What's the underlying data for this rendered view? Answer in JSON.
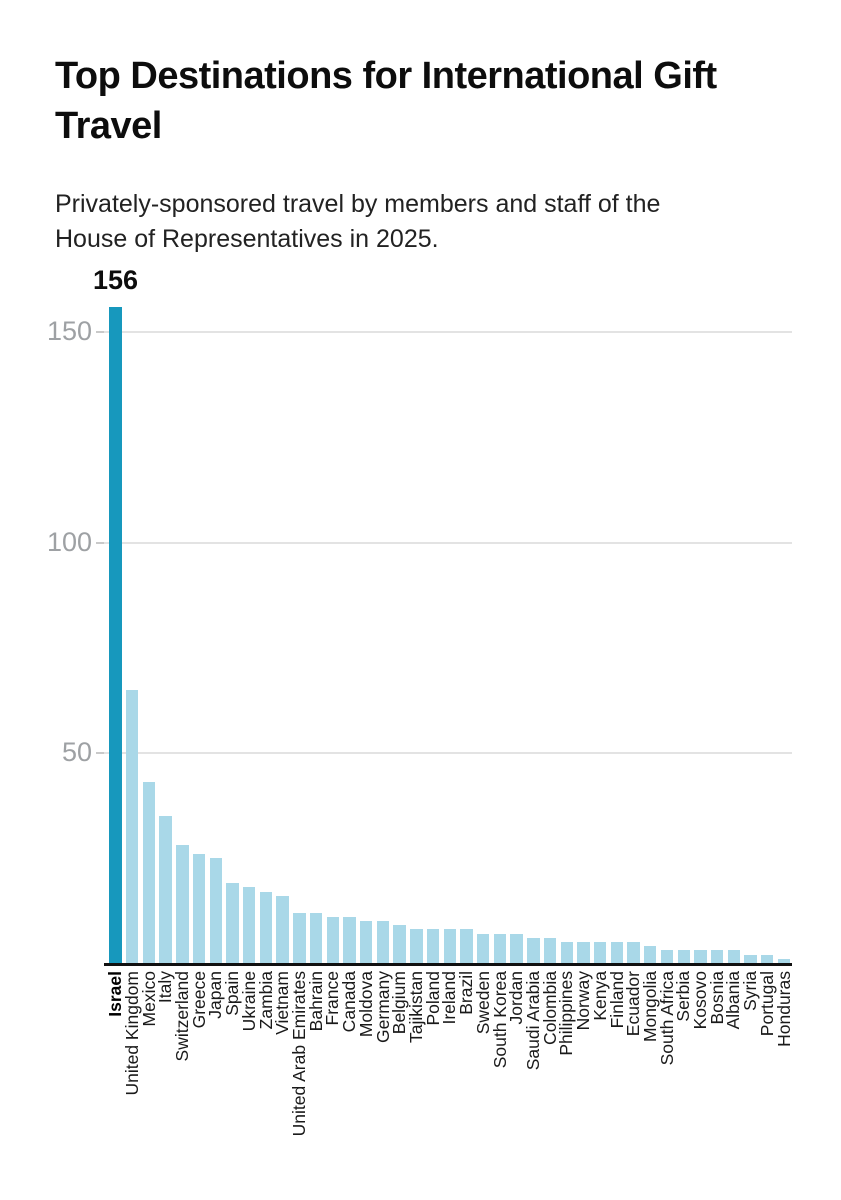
{
  "header": {
    "title": "Top Destinations for International Gift Travel",
    "subtitle": "Privately-sponsored travel by members and staff of the House of Representatives in 2025."
  },
  "chart_data": {
    "type": "bar",
    "title": "Top Destinations for International Gift Travel",
    "subtitle": "Privately-sponsored travel by members and staff of the House of Representatives in 2025.",
    "categories": [
      "Israel",
      "United Kingdom",
      "Mexico",
      "Italy",
      "Switzerland",
      "Greece",
      "Japan",
      "Spain",
      "Ukraine",
      "Zambia",
      "Vietnam",
      "United Arab Emirates",
      "Bahrain",
      "France",
      "Canada",
      "Moldova",
      "Germany",
      "Belgium",
      "Tajikistan",
      "Poland",
      "Ireland",
      "Brazil",
      "Sweden",
      "South Korea",
      "Jordan",
      "Saudi Arabia",
      "Colombia",
      "Philippines",
      "Norway",
      "Kenya",
      "Finland",
      "Ecuador",
      "Mongolia",
      "South Africa",
      "Serbia",
      "Kosovo",
      "Bosnia",
      "Albania",
      "Syria",
      "Portugal",
      "Honduras"
    ],
    "values": [
      156,
      65,
      43,
      35,
      28,
      26,
      25,
      19,
      18,
      17,
      16,
      12,
      12,
      11,
      11,
      10,
      10,
      9,
      8,
      8,
      8,
      8,
      7,
      7,
      7,
      6,
      6,
      5,
      5,
      5,
      5,
      5,
      4,
      3,
      3,
      3,
      3,
      3,
      2,
      2,
      1
    ],
    "xlabel": "",
    "ylabel": "",
    "ylim": [
      0,
      160
    ],
    "yticks": [
      50,
      100,
      150
    ],
    "ytick_labels": [
      "50",
      "100",
      "150"
    ],
    "grid": true,
    "legend": "none",
    "highlight_category": "Israel",
    "annotation": {
      "text": "156",
      "category": "Israel"
    },
    "colors": {
      "bar": "#a9d8e8",
      "highlight_bar": "#1798bd",
      "axis_line": "#111111",
      "gridline": "#e3e3e3",
      "grid_tick": "#c9c9c9",
      "ytick_label": "#9ea1a4",
      "category_label": "#1a1a1a",
      "background": "#ffffff"
    }
  }
}
